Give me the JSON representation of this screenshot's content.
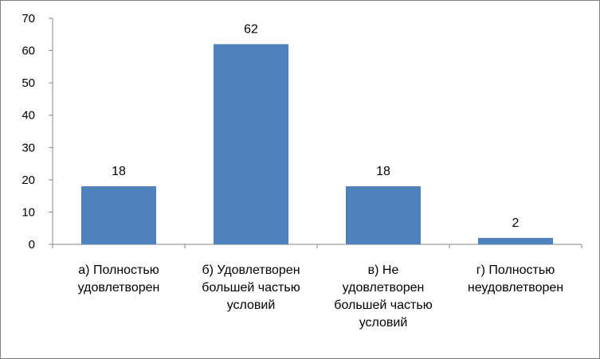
{
  "chart_data": {
    "type": "bar",
    "categories": [
      [
        "а) Полностью",
        "удовлетворен"
      ],
      [
        "б) Удовлетворен",
        "большей частью",
        "условий"
      ],
      [
        "в) Не",
        "удовлетворен",
        "большей частью",
        "условий"
      ],
      [
        "г) Полностью",
        "неудовлетворен"
      ]
    ],
    "values": [
      18,
      62,
      18,
      2
    ],
    "data_labels": [
      "18",
      "62",
      "18",
      "2"
    ],
    "ylim": [
      0,
      70
    ],
    "yticks": [
      "0",
      "10",
      "20",
      "30",
      "40",
      "50",
      "60",
      "70"
    ],
    "title": "",
    "xlabel": "",
    "ylabel": "",
    "grid": false,
    "legend": "none",
    "colors": {
      "bar": "#4f81bd",
      "axis": "#868686",
      "border": "#7f7f7f"
    }
  }
}
